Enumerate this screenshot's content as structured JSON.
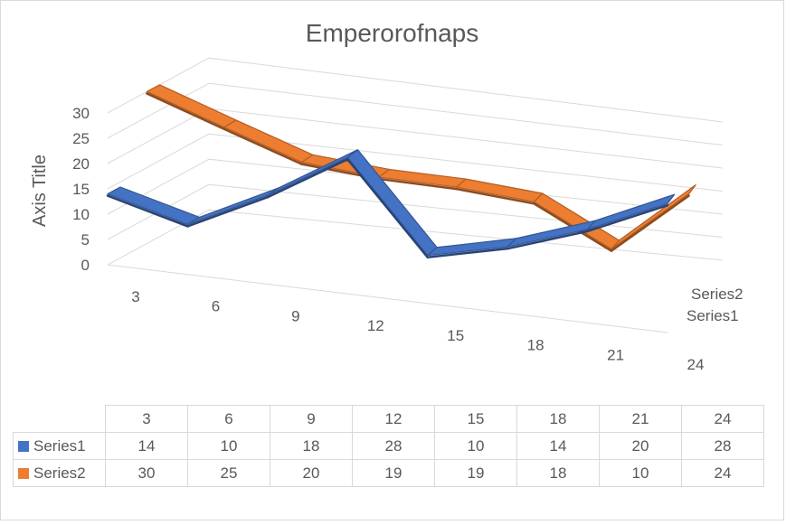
{
  "chart_data": {
    "type": "line",
    "title": "Emperorofnaps",
    "ylabel": "Axis Title",
    "xlabel": "",
    "categories": [
      "3",
      "6",
      "9",
      "12",
      "15",
      "18",
      "21",
      "24"
    ],
    "y_ticks": [
      "0",
      "5",
      "10",
      "15",
      "20",
      "25",
      "30"
    ],
    "ylim": [
      0,
      30
    ],
    "series": [
      {
        "name": "Series1",
        "color": "#4472c4",
        "values": [
          14,
          10,
          18,
          28,
          10,
          14,
          20,
          28
        ]
      },
      {
        "name": "Series2",
        "color": "#ed7d31",
        "values": [
          30,
          25,
          20,
          19,
          19,
          18,
          10,
          24
        ]
      }
    ],
    "depth_labels": [
      "Series2",
      "Series1"
    ],
    "style": "3d-line",
    "gridlines": true,
    "data_table": true
  }
}
